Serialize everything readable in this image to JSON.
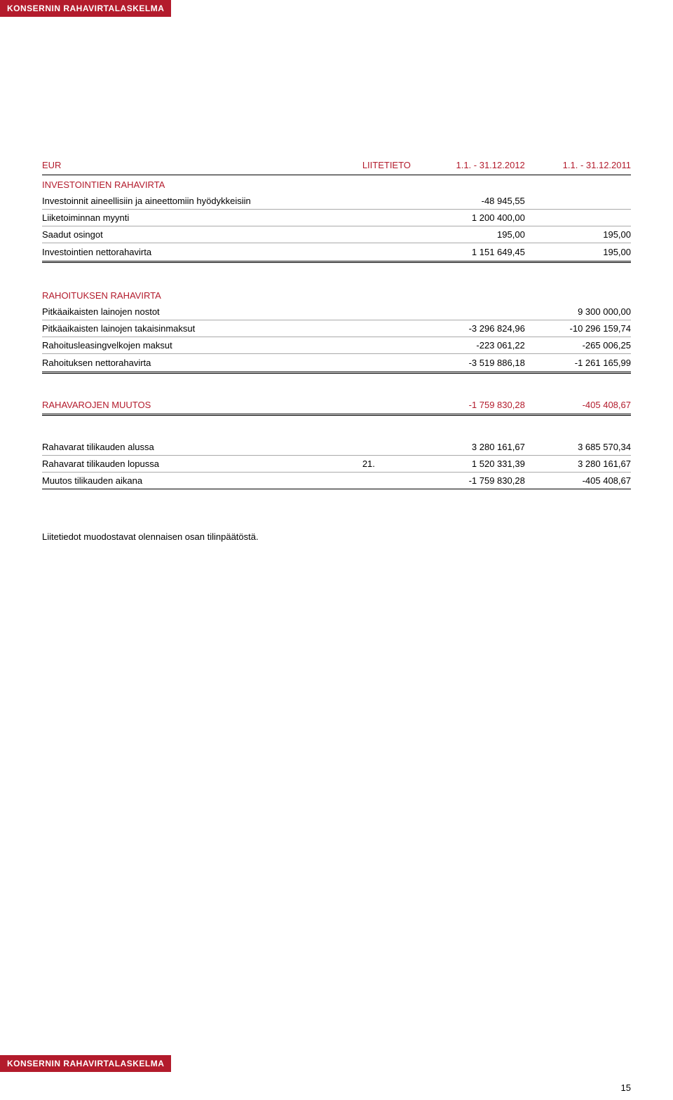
{
  "top_tab": "KONSERNIN RAHAVIRTALASKELMA",
  "header": {
    "c0": "EUR",
    "c1": "LIITETIETO",
    "c2": "1.1. - 31.12.2012",
    "c3": "1.1. - 31.12.2011"
  },
  "investointien": {
    "title": "INVESTOINTIEN RAHAVIRTA",
    "rows": [
      {
        "label": "Investoinnit aineellisiin ja aineettomiin hyödykkeisiin",
        "note": "",
        "v1": "-48 945,55",
        "v2": ""
      },
      {
        "label": "Liiketoiminnan myynti",
        "note": "",
        "v1": "1 200 400,00",
        "v2": ""
      },
      {
        "label": "Saadut osingot",
        "note": "",
        "v1": "195,00",
        "v2": "195,00"
      }
    ],
    "subtotal": {
      "label": "Investointien nettorahavirta",
      "note": "",
      "v1": "1 151 649,45",
      "v2": "195,00"
    }
  },
  "rahoituksen": {
    "title": "RAHOITUKSEN RAHAVIRTA",
    "rows": [
      {
        "label": "Pitkäaikaisten lainojen nostot",
        "note": "",
        "v1": "",
        "v2": "9 300 000,00"
      },
      {
        "label": "Pitkäaikaisten lainojen takaisinmaksut",
        "note": "",
        "v1": "-3 296 824,96",
        "v2": "-10 296 159,74"
      },
      {
        "label": "Rahoitusleasingvelkojen maksut",
        "note": "",
        "v1": "-223 061,22",
        "v2": "-265 006,25"
      }
    ],
    "subtotal": {
      "label": "Rahoituksen nettorahavirta",
      "note": "",
      "v1": "-3 519 886,18",
      "v2": "-1 261 165,99"
    }
  },
  "muutos": {
    "label": "RAHAVAROJEN MUUTOS",
    "v1": "-1 759 830,28",
    "v2": "-405 408,67"
  },
  "rahavarat": {
    "rows": [
      {
        "label": "Rahavarat tilikauden alussa",
        "note": "",
        "v1": "3 280 161,67",
        "v2": "3 685 570,34"
      },
      {
        "label": "Rahavarat tilikauden lopussa",
        "note": "21.",
        "v1": "1 520 331,39",
        "v2": "3 280 161,67"
      },
      {
        "label": "Muutos tilikauden aikana",
        "note": "",
        "v1": "-1 759 830,28",
        "v2": "-405 408,67"
      }
    ]
  },
  "footnote": "Liitetiedot muodostavat olennaisen osan tilinpäätöstä.",
  "footer_tab": "KONSERNIN RAHAVIRTALASKELMA",
  "page_number": "15"
}
